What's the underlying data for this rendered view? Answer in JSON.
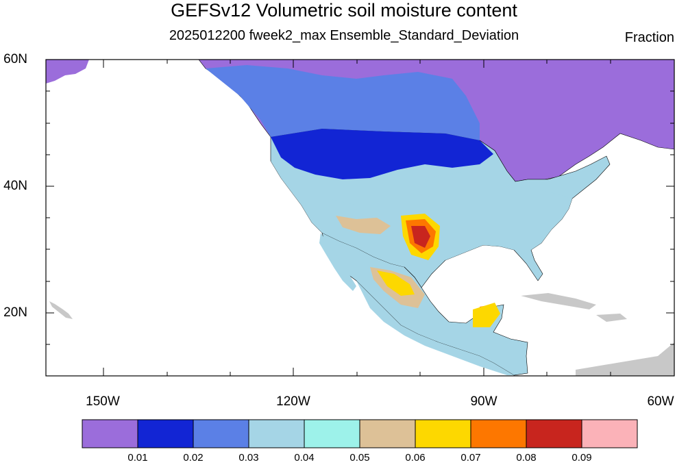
{
  "title": "GEFSv12 Volumetric soil moisture content",
  "subtitle": "2025012200 fweek2_max Ensemble_Standard_Deviation",
  "units": "Fraction",
  "latitude_labels": [
    "60N",
    "40N",
    "20N"
  ],
  "longitude_labels": [
    "150W",
    "120W",
    "90W",
    "60W"
  ],
  "colorbar": {
    "colors": [
      "#9b6ddb",
      "#1225d4",
      "#5b80e6",
      "#a5d5e6",
      "#9df2ea",
      "#ddc197",
      "#fdd800",
      "#fd7700",
      "#c8251e",
      "#fbb2b8"
    ],
    "labels": [
      "0.01",
      "0.02",
      "0.03",
      "0.04",
      "0.05",
      "0.06",
      "0.07",
      "0.08",
      "0.09"
    ]
  },
  "map_colors": {
    "land_nodata": "#c8c8c8",
    "ocean": "#ffffff",
    "boundary": "#000000"
  }
}
